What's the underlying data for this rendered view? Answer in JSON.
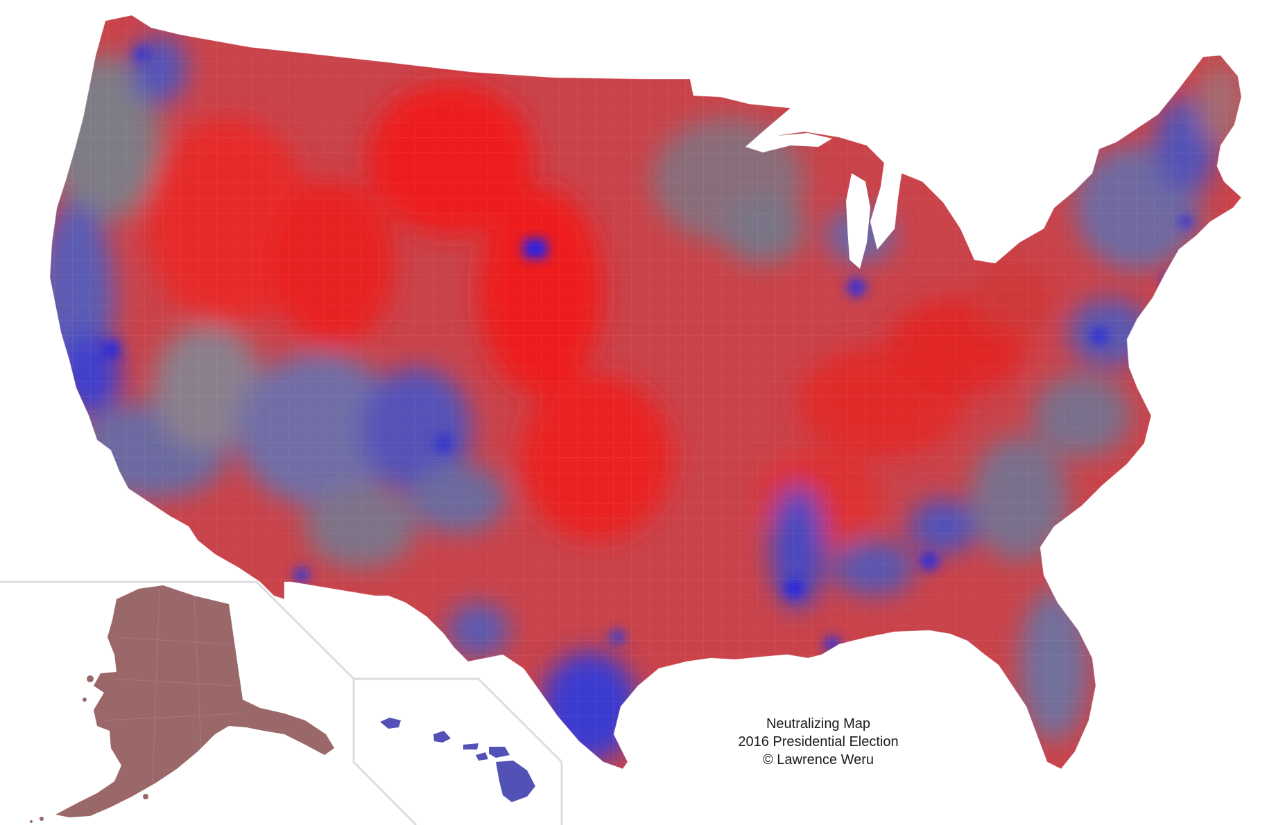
{
  "map": {
    "caption": {
      "title": "Neutralizing Map",
      "subtitle": "2016 Presidential Election",
      "credit": "© Lawrence Weru"
    },
    "colors": {
      "background": "#ffffff",
      "strong_red": "#ee1c1c",
      "red": "#d23a3a",
      "muted_red": "#b34f55",
      "neutral_gray": "#7f7b85",
      "muted_blue": "#6a68a8",
      "blue": "#4a4ac2",
      "strong_blue": "#2222dd",
      "alaska": "#9a6868",
      "inset_border": "#dcdcdc"
    },
    "regions": [
      "contiguous-united-states",
      "alaska",
      "hawaii"
    ]
  }
}
